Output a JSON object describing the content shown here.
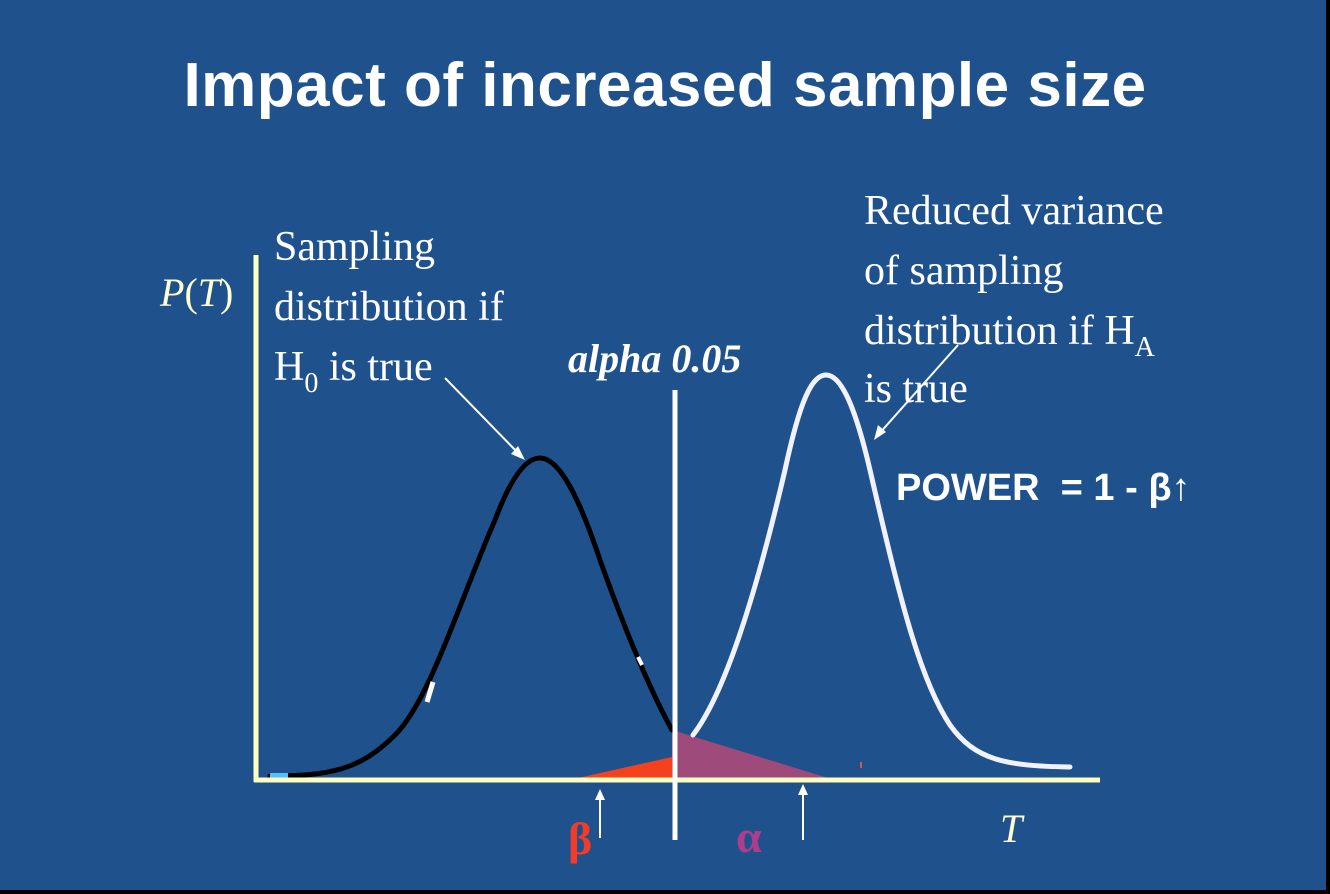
{
  "slide": {
    "title": "Impact of increased sample size",
    "background_color": "#1F528C"
  },
  "axes": {
    "y_label_P": "P",
    "y_label_open": "(",
    "y_label_T": "T",
    "y_label_close": ")",
    "x_label": "T",
    "axis_color": "#FFFFC0"
  },
  "critical_line": {
    "label": "alpha 0.05"
  },
  "h0_annotation": {
    "line1": "Sampling",
    "line2": "distribution if",
    "line3_H": "H",
    "line3_sub": "0",
    "line3_rest": " is true"
  },
  "ha_annotation": {
    "line1": "Reduced variance",
    "line2": "of sampling",
    "line3_main": "distribution if H",
    "line3_sub": "A",
    "line4": "is true"
  },
  "power_label": "POWER  = 1 - β↑",
  "beta_label": "β",
  "alpha_label": "α",
  "colors": {
    "h0_curve": "#000000",
    "ha_curve": "#F2F2FF",
    "beta_region": "#F5421E",
    "alpha_region": "#9E4A7B",
    "beta_text": "#F03C28",
    "alpha_text": "#B03C8C"
  }
}
